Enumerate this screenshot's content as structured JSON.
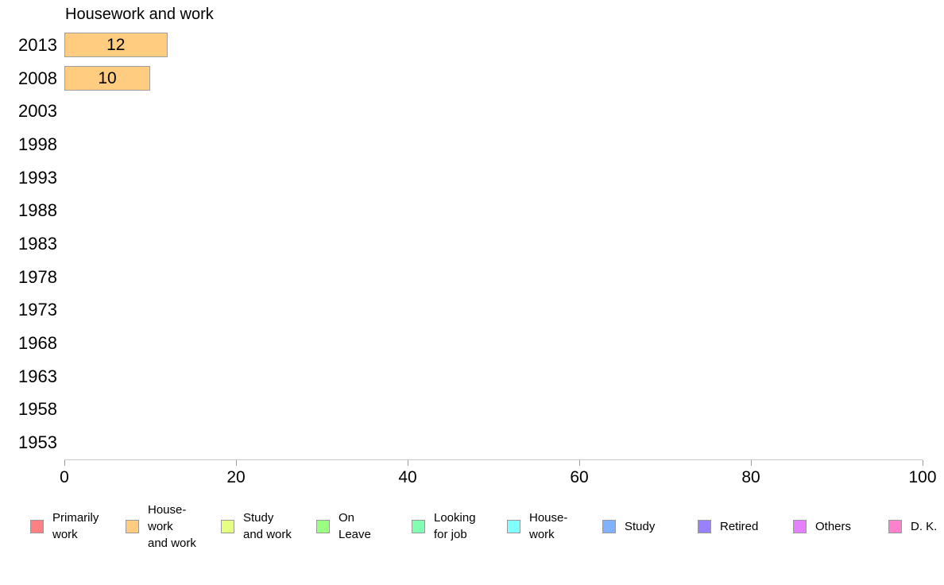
{
  "chart_data": {
    "type": "bar",
    "orientation": "horizontal",
    "title": "Housework and work",
    "categories": [
      "2013",
      "2008",
      "2003",
      "1998",
      "1993",
      "1988",
      "1983",
      "1978",
      "1973",
      "1968",
      "1963",
      "1958",
      "1953"
    ],
    "values": [
      12,
      10,
      null,
      null,
      null,
      null,
      null,
      null,
      null,
      null,
      null,
      null,
      null
    ],
    "bar_value_labels": [
      "12",
      "10",
      "",
      "",
      "",
      "",
      "",
      "",
      "",
      "",
      "",
      "",
      ""
    ],
    "bar_color": "#FFCC80",
    "bar_border_color": "#A0A0A0",
    "xlim": [
      0,
      100
    ],
    "x_ticks": [
      "0",
      "20",
      "40",
      "60",
      "80",
      "100"
    ],
    "grid": "off",
    "legend_position": "bottom",
    "legend": [
      {
        "label": "Primarily\nwork",
        "color": "#FF8080"
      },
      {
        "label": "House-\nwork\nand work",
        "color": "#FFCC80"
      },
      {
        "label": "Study\nand work",
        "color": "#E5FF80"
      },
      {
        "label": "On\nLeave",
        "color": "#99FF80"
      },
      {
        "label": "Looking\nfor job",
        "color": "#80FFB2"
      },
      {
        "label": "House-\nwork",
        "color": "#80FFFF"
      },
      {
        "label": "Study",
        "color": "#80B2FF"
      },
      {
        "label": "Retired",
        "color": "#9980FF"
      },
      {
        "label": "Others",
        "color": "#E580FF"
      },
      {
        "label": "D. K.",
        "color": "#FF80CC"
      }
    ]
  }
}
